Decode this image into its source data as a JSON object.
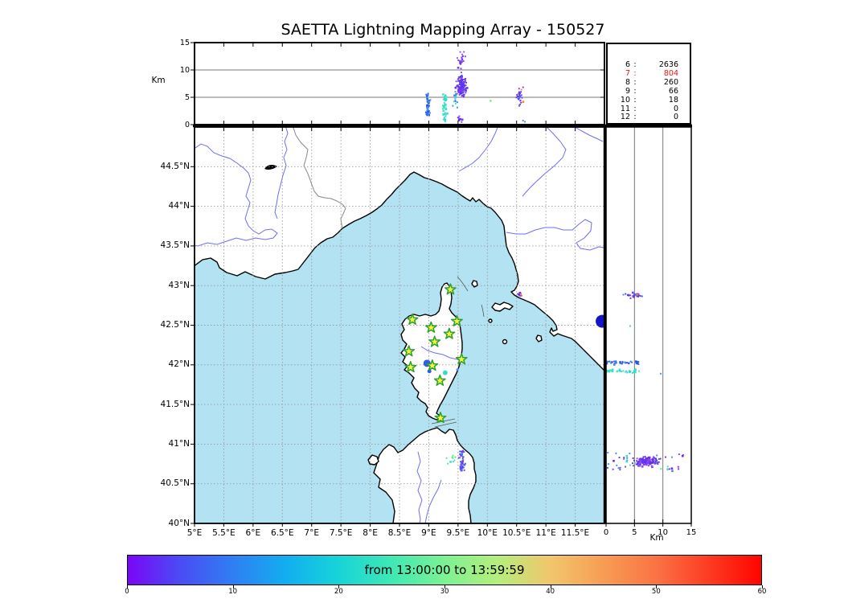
{
  "title": "SAETTA Lightning Mapping Array - 150527",
  "colors": {
    "sea": "#b3e3f2",
    "land": "#ffffff",
    "coast": "#000000",
    "river": "#6e6ef5",
    "grid": "#999999",
    "border_line": "#888888",
    "panel_grid": "#777777",
    "star_fill": "#edf63b",
    "star_stroke": "#2f9e2f",
    "highlight_red": "#ee1111"
  },
  "top_panel": {
    "ylabel": "Km",
    "yticks": [
      {
        "label": "15",
        "km": 15
      },
      {
        "label": "10",
        "km": 10
      },
      {
        "label": "5",
        "km": 5
      },
      {
        "label": "0",
        "km": 0
      }
    ]
  },
  "right_panel": {
    "xlabel": "Km",
    "xticks": [
      {
        "label": "0",
        "km": 0
      },
      {
        "label": "5",
        "km": 5
      },
      {
        "label": "10",
        "km": 10
      },
      {
        "label": "15",
        "km": 15
      }
    ]
  },
  "map_panel": {
    "lon_ticks": [
      {
        "label": "5°E",
        "lon": 5
      },
      {
        "label": "5.5°E",
        "lon": 5.5
      },
      {
        "label": "6°E",
        "lon": 6
      },
      {
        "label": "6.5°E",
        "lon": 6.5
      },
      {
        "label": "7°E",
        "lon": 7
      },
      {
        "label": "7.5°E",
        "lon": 7.5
      },
      {
        "label": "8°E",
        "lon": 8
      },
      {
        "label": "8.5°E",
        "lon": 8.5
      },
      {
        "label": "9°E",
        "lon": 9
      },
      {
        "label": "9.5°E",
        "lon": 9.5
      },
      {
        "label": "10°E",
        "lon": 10
      },
      {
        "label": "10.5°E",
        "lon": 10.5
      },
      {
        "label": "11°E",
        "lon": 11
      },
      {
        "label": "11.5°E",
        "lon": 11.5
      }
    ],
    "lat_ticks": [
      {
        "label": "44.5°N",
        "lat": 44.5
      },
      {
        "label": "44°N",
        "lat": 44
      },
      {
        "label": "43.5°N",
        "lat": 43.5
      },
      {
        "label": "43°N",
        "lat": 43
      },
      {
        "label": "42.5°N",
        "lat": 42.5
      },
      {
        "label": "42°N",
        "lat": 42
      },
      {
        "label": "41.5°N",
        "lat": 41.5
      },
      {
        "label": "41°N",
        "lat": 41
      },
      {
        "label": "40.5°N",
        "lat": 40.5
      },
      {
        "label": "40°N",
        "lat": 40
      }
    ]
  },
  "stats": {
    "rows": [
      {
        "key": "6",
        "value": "2636",
        "highlight": false
      },
      {
        "key": "7",
        "value": "804",
        "highlight": true
      },
      {
        "key": "8",
        "value": "260",
        "highlight": false
      },
      {
        "key": "9",
        "value": "66",
        "highlight": false
      },
      {
        "key": "10",
        "value": "18",
        "highlight": false
      },
      {
        "key": "11",
        "value": "0",
        "highlight": false
      },
      {
        "key": "12",
        "value": "0",
        "highlight": false
      }
    ]
  },
  "colorbar": {
    "label": "from 13:00:00 to 13:59:59",
    "ticks": [
      0,
      10,
      20,
      30,
      40,
      50,
      60
    ],
    "range": [
      0,
      60
    ],
    "gradient": [
      "#7a06f7",
      "#4a4cf5",
      "#2f7ff2",
      "#12aef0",
      "#17d4d8",
      "#40e8b5",
      "#7cf293",
      "#b5ee7c",
      "#f2c66c",
      "#f79d55",
      "#fa7444",
      "#fd3c22",
      "#ff0400"
    ]
  },
  "chart_data": [
    {
      "type": "scatter",
      "panel": "altitude-vs-longitude",
      "ylabel": "Km",
      "ylim": [
        0,
        15
      ],
      "yticks": [
        0,
        5,
        10,
        15
      ],
      "xlim": [
        5,
        12
      ],
      "gridlines_km": [
        5,
        10
      ],
      "clusters": [
        {
          "name": "streak-blue-9e",
          "x": [
            8.93,
            9.05
          ],
          "y": [
            1.7,
            5.9
          ],
          "n": 48,
          "colors": [
            "#2e6cf2",
            "#3f86f0",
            "#2a52e8",
            "#49a0ee"
          ],
          "dist": "streakV"
        },
        {
          "name": "streak-cyan-9.3e",
          "x": [
            9.22,
            9.33
          ],
          "y": [
            0.5,
            5.6
          ],
          "n": 42,
          "colors": [
            "#35dfc8",
            "#2fd6d6",
            "#4ae8b5"
          ],
          "dist": "streakV"
        },
        {
          "name": "main-dense",
          "x": [
            9.44,
            9.68
          ],
          "y": [
            3.9,
            9.9
          ],
          "n": 130,
          "colors": [
            "#6a2bf2",
            "#7c3cf4",
            "#5633ec",
            "#8a48f2",
            "#4e46e8"
          ],
          "dist": "gauss"
        },
        {
          "name": "main-top",
          "x": [
            9.48,
            9.64
          ],
          "y": [
            9.9,
            13.9
          ],
          "n": 26,
          "colors": [
            "#7c3cf4",
            "#6a2bf2",
            "#9150f0"
          ],
          "dist": "gauss"
        },
        {
          "name": "main-mix-cyan",
          "x": [
            9.4,
            9.52
          ],
          "y": [
            2.5,
            6.5
          ],
          "n": 14,
          "colors": [
            "#35dfc8",
            "#3f86f0"
          ],
          "dist": "gauss"
        },
        {
          "name": "main-low",
          "x": [
            9.46,
            9.62
          ],
          "y": [
            0.3,
            1.8
          ],
          "n": 10,
          "colors": [
            "#6a2bf2",
            "#7c3cf4"
          ],
          "dist": "gauss"
        },
        {
          "name": "east-cluster",
          "x": [
            10.47,
            10.63
          ],
          "y": [
            2.5,
            7.4
          ],
          "n": 30,
          "colors": [
            "#6a2bf2",
            "#3f86f0",
            "#5633ec",
            "#7c3cf4"
          ],
          "dist": "gauss"
        },
        {
          "name": "east-orange",
          "x": [
            10.56,
            10.62
          ],
          "y": [
            3.4,
            6.6
          ],
          "n": 3,
          "colors": [
            "#ff8c1a"
          ],
          "dist": "uniform"
        },
        {
          "name": "lone-green",
          "x": [
            10.04,
            10.08
          ],
          "y": [
            4.3,
            4.5
          ],
          "n": 1,
          "colors": [
            "#3ddc5a"
          ],
          "dist": "uniform"
        },
        {
          "name": "east-low",
          "x": [
            10.6,
            10.72
          ],
          "y": [
            0.5,
            1.0
          ],
          "n": 2,
          "colors": [
            "#3f86f0"
          ],
          "dist": "uniform"
        }
      ]
    },
    {
      "type": "scatter",
      "panel": "map-lat-lon",
      "xlim": [
        5,
        12
      ],
      "ylim": [
        40,
        45
      ],
      "clusters": [
        {
          "name": "elba-coast",
          "x": [
            10.48,
            10.62
          ],
          "y": [
            42.84,
            42.93
          ],
          "n": 14,
          "colors": [
            "#6a2bf2",
            "#7c3cf4",
            "#5633ec"
          ],
          "dist": "gauss"
        },
        {
          "name": "elba-orange",
          "x": [
            10.56,
            10.6
          ],
          "y": [
            42.87,
            42.9
          ],
          "n": 2,
          "colors": [
            "#ff8c1a"
          ],
          "dist": "uniform"
        },
        {
          "name": "sardinia-streak",
          "x": [
            9.5,
            9.63
          ],
          "y": [
            40.66,
            40.92
          ],
          "n": 50,
          "colors": [
            "#4968f0",
            "#5a52ee",
            "#6a3bf2",
            "#3f86f0"
          ],
          "dist": "streakV"
        },
        {
          "name": "sardinia-cyan",
          "x": [
            9.3,
            9.46
          ],
          "y": [
            40.74,
            40.86
          ],
          "n": 9,
          "colors": [
            "#35dfc8",
            "#56e87a"
          ],
          "dist": "uniform"
        }
      ],
      "blobs": [
        {
          "name": "offshore-navy-blob",
          "lon": 11.96,
          "lat": 42.55,
          "r": 8,
          "color": "#1414cc"
        },
        {
          "name": "corsica-blue-blob",
          "lon": 8.97,
          "lat": 42.02,
          "r": 4.5,
          "color": "#2e5cf0"
        },
        {
          "name": "corsica-blue-dot",
          "lon": 9.01,
          "lat": 41.92,
          "r": 2.5,
          "color": "#2e5cf0"
        },
        {
          "name": "corsica-cyan-dot",
          "lon": 9.28,
          "lat": 41.9,
          "r": 3,
          "color": "#3fd8d0"
        },
        {
          "name": "corsica-speck",
          "lon": 9.49,
          "lat": 41.94,
          "r": 1.5,
          "color": "#3f86f0"
        }
      ],
      "stations": [
        {
          "lon": 9.37,
          "lat": 42.95
        },
        {
          "lon": 8.72,
          "lat": 42.57
        },
        {
          "lon": 9.04,
          "lat": 42.47
        },
        {
          "lon": 9.48,
          "lat": 42.55
        },
        {
          "lon": 9.35,
          "lat": 42.39
        },
        {
          "lon": 9.1,
          "lat": 42.29
        },
        {
          "lon": 8.66,
          "lat": 42.17
        },
        {
          "lon": 9.56,
          "lat": 42.07
        },
        {
          "lon": 9.06,
          "lat": 41.99
        },
        {
          "lon": 8.69,
          "lat": 41.97
        },
        {
          "lon": 9.19,
          "lat": 41.8
        },
        {
          "lon": 9.2,
          "lat": 41.33
        }
      ]
    },
    {
      "type": "scatter",
      "panel": "altitude-vs-latitude",
      "xlabel": "Km",
      "xlim": [
        0,
        15
      ],
      "xticks": [
        0,
        5,
        10,
        15
      ],
      "ylim": [
        40,
        45
      ],
      "gridlines_km": [
        5,
        10
      ],
      "clusters": [
        {
          "name": "north-43n",
          "x": [
            2.4,
            7.4
          ],
          "y": [
            42.83,
            42.93
          ],
          "n": 30,
          "colors": [
            "#6a2bf2",
            "#3f86f0",
            "#7c3cf4",
            "#5633ec"
          ],
          "dist": "gauss"
        },
        {
          "name": "north-orange",
          "x": [
            4.8,
            5.6
          ],
          "y": [
            42.86,
            42.89
          ],
          "n": 2,
          "colors": [
            "#ff8c1a"
          ],
          "dist": "uniform"
        },
        {
          "name": "lone-green",
          "x": [
            4.2,
            4.4
          ],
          "y": [
            42.48,
            42.5
          ],
          "n": 1,
          "colors": [
            "#3ddc5a"
          ],
          "dist": "uniform"
        },
        {
          "name": "streak-blue-42n",
          "x": [
            0.1,
            6.3
          ],
          "y": [
            41.99,
            42.06
          ],
          "n": 40,
          "colors": [
            "#2e6cf2",
            "#3f86f0",
            "#2a52e8"
          ],
          "dist": "streakH"
        },
        {
          "name": "streak-cyan-41.9n",
          "x": [
            0.0,
            5.8
          ],
          "y": [
            41.89,
            41.95
          ],
          "n": 40,
          "colors": [
            "#35dfc8",
            "#2fd6d6",
            "#4ae8b5"
          ],
          "dist": "streakH"
        },
        {
          "name": "dot-blue",
          "x": [
            9.5,
            9.7
          ],
          "y": [
            41.87,
            41.89
          ],
          "n": 1,
          "colors": [
            "#3f86f0"
          ],
          "dist": "uniform"
        },
        {
          "name": "south-dense",
          "x": [
            4.4,
            10.0
          ],
          "y": [
            40.7,
            40.86
          ],
          "n": 140,
          "colors": [
            "#6a2bf2",
            "#7c3cf4",
            "#5633ec",
            "#8a48f2"
          ],
          "dist": "gauss"
        },
        {
          "name": "south-wide",
          "x": [
            0.0,
            14.0
          ],
          "y": [
            40.66,
            40.9
          ],
          "n": 45,
          "colors": [
            "#6a2bf2",
            "#3f86f0",
            "#35dfc8",
            "#7c3cf4"
          ],
          "dist": "uniform"
        }
      ]
    },
    {
      "type": "table",
      "panel": "source-counts",
      "rows": [
        [
          "6",
          "2636"
        ],
        [
          "7",
          "804"
        ],
        [
          "8",
          "260"
        ],
        [
          "9",
          "66"
        ],
        [
          "10",
          "18"
        ],
        [
          "11",
          "0"
        ],
        [
          "12",
          "0"
        ]
      ],
      "highlight_row": "7"
    },
    {
      "type": "colorbar",
      "label": "from 13:00:00 to 13:59:59",
      "ticks": [
        0,
        10,
        20,
        30,
        40,
        50,
        60
      ],
      "range": [
        0,
        60
      ]
    }
  ]
}
